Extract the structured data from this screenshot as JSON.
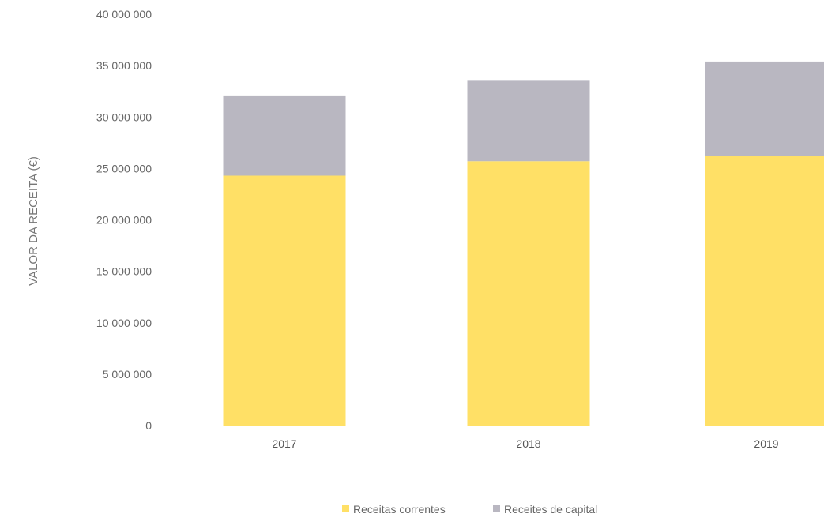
{
  "chart_data": {
    "type": "bar",
    "stacked": true,
    "categories": [
      "2017",
      "2018",
      "2019"
    ],
    "series": [
      {
        "name": "Receitas correntes",
        "values": [
          24300000,
          25700000,
          26200000
        ],
        "color": "#FFE066"
      },
      {
        "name": "Receites de capital",
        "values": [
          7800000,
          7900000,
          9200000
        ],
        "color": "#B9B7C1"
      }
    ],
    "title": "",
    "xlabel": "",
    "ylabel": "VALOR DA RECEITA (€)",
    "ylim": [
      0,
      40000000
    ],
    "y_ticks": [
      0,
      5000000,
      10000000,
      15000000,
      20000000,
      25000000,
      30000000,
      35000000,
      40000000
    ],
    "y_tick_labels": [
      "0",
      "5 000 000",
      "10 000 000",
      "15 000 000",
      "20 000 000",
      "25 000 000",
      "30 000 000",
      "35 000 000",
      "40 000 000"
    ],
    "grid": false,
    "legend_position": "bottom-center"
  }
}
